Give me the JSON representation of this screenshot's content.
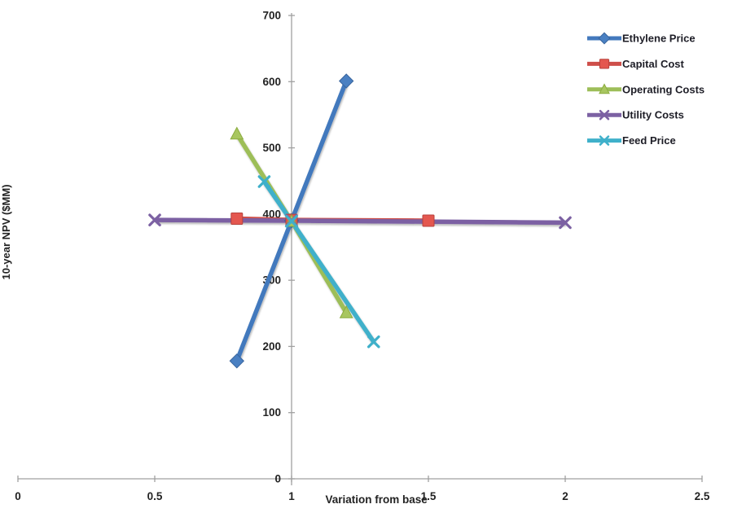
{
  "chart_data": {
    "type": "line",
    "title": "",
    "xlabel": "Variation from base",
    "ylabel": "10-year NPV ($MM)",
    "xlim": [
      0,
      2.5
    ],
    "ylim": [
      0,
      700
    ],
    "x_tick_labels": [
      "0",
      "0.5",
      "1",
      "1.5",
      "2",
      "2.5"
    ],
    "x_tick_values": [
      0,
      0.5,
      1,
      1.5,
      2,
      2.5
    ],
    "y_tick_labels": [
      "0",
      "100",
      "200",
      "300",
      "400",
      "500",
      "600",
      "700"
    ],
    "y_tick_values": [
      0,
      100,
      200,
      300,
      400,
      500,
      600,
      700
    ],
    "y_axis_at_x": 1,
    "grid": false,
    "legend_position": "top-right",
    "axis_color": "#A0A0A0",
    "tick_text_color": "#232323",
    "legend_text_color": "#1D1D26",
    "series": [
      {
        "name": "Ethylene Price",
        "marker": "diamond",
        "color": "#4379BD",
        "marker_fill": "#4A80C2",
        "marker_edge": "#38649D",
        "x": [
          0.8,
          1,
          1.2
        ],
        "y": [
          178,
          390,
          601
        ]
      },
      {
        "name": "Capital Cost",
        "marker": "square",
        "color": "#CE4F4A",
        "marker_fill": "#E4574F",
        "marker_edge": "#B8423C",
        "x": [
          0.8,
          1,
          1.5
        ],
        "y": [
          393,
          391,
          390
        ]
      },
      {
        "name": "Operating Costs",
        "marker": "triangle",
        "color": "#9DBE59",
        "marker_fill": "#A8C660",
        "marker_edge": "#8CAC3F",
        "x": [
          0.8,
          1,
          1.2
        ],
        "y": [
          521,
          389,
          251
        ]
      },
      {
        "name": "Utility Costs",
        "marker": "x",
        "color": "#7C61A3",
        "marker_fill": "#7C61A3",
        "marker_edge": "#7C61A3",
        "x": [
          0.5,
          1,
          2
        ],
        "y": [
          391,
          390,
          387
        ]
      },
      {
        "name": "Feed Price",
        "marker": "x",
        "color": "#3FB0CA",
        "marker_fill": "#3FB0CA",
        "marker_edge": "#3FB0CA",
        "x": [
          0.9,
          1,
          1.3
        ],
        "y": [
          449,
          389,
          207
        ]
      }
    ]
  }
}
